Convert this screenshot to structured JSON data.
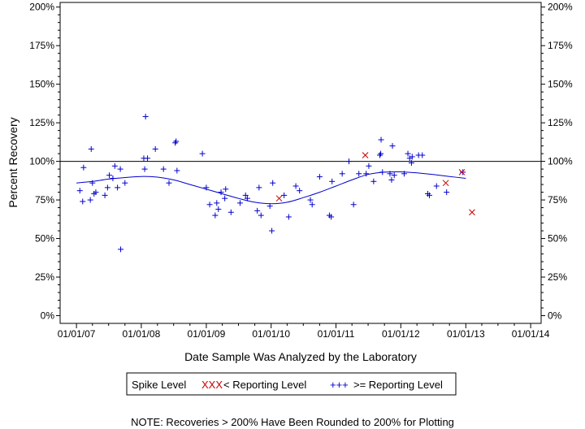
{
  "chart_data": {
    "type": "scatter",
    "xlabel": "Date Sample Was Analyzed by the Laboratory",
    "ylabel": "Percent Recovery",
    "x_ticks": [
      "01/01/07",
      "01/01/08",
      "01/01/09",
      "01/01/10",
      "01/01/11",
      "01/01/12",
      "01/01/13",
      "01/01/14"
    ],
    "y_ticks": [
      "0%",
      "25%",
      "50%",
      "75%",
      "100%",
      "125%",
      "150%",
      "175%",
      "200%"
    ],
    "xlim": [
      "2006-10-01",
      "2014-03-01"
    ],
    "ylim": [
      -5,
      203
    ],
    "reference_line": 100,
    "legend": {
      "title": "Spike Level",
      "items": [
        {
          "symbol": "XXX",
          "label": "< Reporting Level",
          "color": "#cc0000"
        },
        {
          "symbol": "+++",
          "label": ">= Reporting Level",
          "color": "#0000cc"
        }
      ]
    },
    "note": "NOTE: Recoveries > 200% Have Been Rounded to 200% for Plotting",
    "series": [
      {
        "marker": "plus",
        "color": "#0000cc",
        "points": [
          [
            "2007-01-20",
            81
          ],
          [
            "2007-02-05",
            74
          ],
          [
            "2007-02-10",
            96
          ],
          [
            "2007-03-20",
            75
          ],
          [
            "2007-03-25",
            108
          ],
          [
            "2007-04-01",
            86
          ],
          [
            "2007-04-10",
            79
          ],
          [
            "2007-04-20",
            80
          ],
          [
            "2007-06-10",
            78
          ],
          [
            "2007-06-25",
            83
          ],
          [
            "2007-07-05",
            91
          ],
          [
            "2007-07-25",
            89
          ],
          [
            "2007-08-05",
            97
          ],
          [
            "2007-08-20",
            83
          ],
          [
            "2007-09-05",
            95
          ],
          [
            "2007-09-07",
            43
          ],
          [
            "2007-10-01",
            86
          ],
          [
            "2008-01-15",
            102
          ],
          [
            "2008-01-20",
            95
          ],
          [
            "2008-01-25",
            129
          ],
          [
            "2008-02-05",
            102
          ],
          [
            "2008-03-20",
            108
          ],
          [
            "2008-05-05",
            95
          ],
          [
            "2008-06-05",
            86
          ],
          [
            "2008-07-10",
            112
          ],
          [
            "2008-07-15",
            113
          ],
          [
            "2008-07-20",
            94
          ],
          [
            "2008-12-10",
            105
          ],
          [
            "2009-01-01",
            83
          ],
          [
            "2009-01-20",
            72
          ],
          [
            "2009-02-20",
            65
          ],
          [
            "2009-03-01",
            73
          ],
          [
            "2009-03-10",
            69
          ],
          [
            "2009-03-25",
            80
          ],
          [
            "2009-04-15",
            76
          ],
          [
            "2009-04-20",
            82
          ],
          [
            "2009-05-20",
            67
          ],
          [
            "2009-07-10",
            73
          ],
          [
            "2009-08-10",
            78
          ],
          [
            "2009-08-20",
            76
          ],
          [
            "2009-10-15",
            68
          ],
          [
            "2009-10-25",
            83
          ],
          [
            "2009-11-05",
            65
          ],
          [
            "2009-12-25",
            71
          ],
          [
            "2010-01-05",
            55
          ],
          [
            "2010-01-10",
            86
          ],
          [
            "2010-03-15",
            78
          ],
          [
            "2010-04-10",
            64
          ],
          [
            "2010-05-20",
            84
          ],
          [
            "2010-06-10",
            81
          ],
          [
            "2010-08-10",
            75
          ],
          [
            "2010-08-20",
            72
          ],
          [
            "2010-10-01",
            90
          ],
          [
            "2010-11-25",
            65
          ],
          [
            "2010-12-05",
            64
          ],
          [
            "2010-12-10",
            87
          ],
          [
            "2011-02-05",
            92
          ],
          [
            "2011-03-15",
            100
          ],
          [
            "2011-04-10",
            72
          ],
          [
            "2011-05-10",
            92
          ],
          [
            "2011-06-20",
            92
          ],
          [
            "2011-07-05",
            97
          ],
          [
            "2011-08-01",
            87
          ],
          [
            "2011-09-05",
            104
          ],
          [
            "2011-09-10",
            105
          ],
          [
            "2011-09-12",
            114
          ],
          [
            "2011-09-20",
            93
          ],
          [
            "2011-11-01",
            92
          ],
          [
            "2011-11-10",
            88
          ],
          [
            "2011-11-15",
            110
          ],
          [
            "2011-11-25",
            91
          ],
          [
            "2012-01-20",
            92
          ],
          [
            "2012-02-10",
            105
          ],
          [
            "2012-02-20",
            102
          ],
          [
            "2012-03-01",
            99
          ],
          [
            "2012-03-05",
            103
          ],
          [
            "2012-04-10",
            104
          ],
          [
            "2012-05-01",
            104
          ],
          [
            "2012-06-01",
            79
          ],
          [
            "2012-06-10",
            78
          ],
          [
            "2012-07-20",
            84
          ],
          [
            "2012-09-15",
            80
          ],
          [
            "2012-12-15",
            93
          ]
        ]
      },
      {
        "marker": "x",
        "color": "#cc0000",
        "points": [
          [
            "2010-02-15",
            76
          ],
          [
            "2011-06-15",
            104
          ],
          [
            "2012-09-10",
            86
          ],
          [
            "2012-12-10",
            93
          ],
          [
            "2013-02-05",
            67
          ]
        ]
      }
    ],
    "trend_line": {
      "color": "#0000cc",
      "points": [
        [
          "2007-01-01",
          86
        ],
        [
          "2007-04-01",
          87
        ],
        [
          "2007-07-01",
          88.5
        ],
        [
          "2007-10-01",
          89.5
        ],
        [
          "2008-01-01",
          90.2
        ],
        [
          "2008-04-01",
          89.8
        ],
        [
          "2008-07-01",
          88
        ],
        [
          "2008-10-01",
          85
        ],
        [
          "2009-01-01",
          82
        ],
        [
          "2009-04-01",
          79
        ],
        [
          "2009-07-01",
          76
        ],
        [
          "2009-10-01",
          73.5
        ],
        [
          "2010-01-01",
          72.5
        ],
        [
          "2010-04-01",
          73.5
        ],
        [
          "2010-07-01",
          76.5
        ],
        [
          "2010-10-01",
          80
        ],
        [
          "2011-01-01",
          84
        ],
        [
          "2011-04-01",
          88
        ],
        [
          "2011-07-01",
          91.5
        ],
        [
          "2011-10-01",
          93
        ],
        [
          "2012-01-01",
          93.2
        ],
        [
          "2012-04-01",
          92.5
        ],
        [
          "2012-07-01",
          91.5
        ],
        [
          "2012-10-01",
          90.2
        ],
        [
          "2013-01-01",
          89
        ]
      ]
    }
  }
}
